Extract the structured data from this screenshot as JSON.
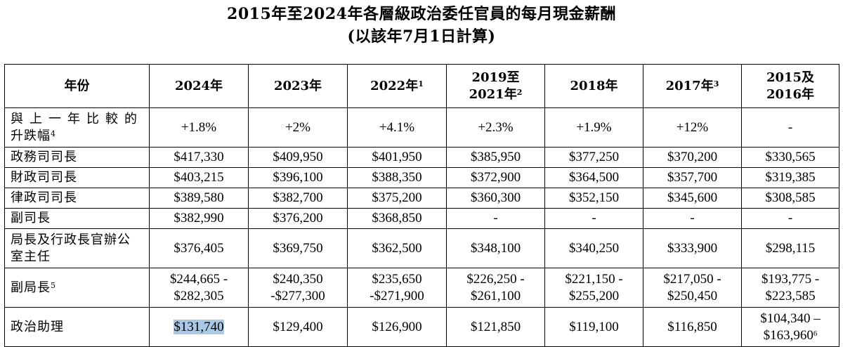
{
  "title": {
    "line1": "2015年至2024年各層級政治委任官員的每月現金薪酬",
    "line2": "(以該年7月1日計算)"
  },
  "table": {
    "header": {
      "label": "年份",
      "cols": [
        {
          "text": "2024年",
          "sup": ""
        },
        {
          "text": "2023年",
          "sup": ""
        },
        {
          "text": "2022年",
          "sup": "1"
        },
        {
          "line1": "2019至",
          "line2": "2021年",
          "sup": "2"
        },
        {
          "text": "2018年",
          "sup": ""
        },
        {
          "text": "2017年",
          "sup": "3"
        },
        {
          "line1": "2015及",
          "line2": "2016年",
          "sup": ""
        }
      ]
    },
    "change_row": {
      "label_line1": "與上一年比較的",
      "label_line2": "升跌幅",
      "label_sup": "4",
      "values": [
        "+1.8%",
        "+2%",
        "+4.1%",
        "+2.3%",
        "+1.9%",
        "+12%",
        "-"
      ]
    },
    "rows": [
      {
        "label": "政務司司長",
        "values": [
          "$417,330",
          "$409,950",
          "$401,950",
          "$385,950",
          "$377,250",
          "$370,200",
          "$330,565"
        ]
      },
      {
        "label": "財政司司長",
        "values": [
          "$403,215",
          "$396,100",
          "$388,350",
          "$372,900",
          "$364,500",
          "$357,700",
          "$319,385"
        ]
      },
      {
        "label": "律政司司長",
        "values": [
          "$389,580",
          "$382,700",
          "$375,200",
          "$360,300",
          "$352,150",
          "$345,600",
          "$308,585"
        ]
      },
      {
        "label": "副司長",
        "values": [
          "$382,990",
          "$376,200",
          "$368,850",
          "-",
          "-",
          "-",
          "-"
        ]
      }
    ],
    "director_row": {
      "label_line1": "局長及行政長官辦公",
      "label_line2": "室主任",
      "values": [
        "$376,405",
        "$369,750",
        "$362,500",
        "$348,100",
        "$340,250",
        "$333,900",
        "$298,115"
      ]
    },
    "under_row": {
      "label": "副局長",
      "label_sup": "5",
      "values": [
        {
          "l1": "$244,665 -",
          "l2": "$282,305"
        },
        {
          "l1": "$240,350",
          "l2": "-$277,300"
        },
        {
          "l1": "$235,650",
          "l2": "-$271,900"
        },
        {
          "l1": "$226,250 -",
          "l2": "$261,100"
        },
        {
          "l1": "$221,150 -",
          "l2": "$255,200"
        },
        {
          "l1": "$217,050 -",
          "l2": "$250,450"
        },
        {
          "l1": "$193,775 -",
          "l2": "$223,585"
        }
      ]
    },
    "assistant_row": {
      "label": "政治助理",
      "values": [
        "$131,740",
        "$129,400",
        "$126,900",
        "$121,850",
        "$119,100",
        "$116,850"
      ],
      "last_l1": "$104,340 –",
      "last_l2": "$163,960",
      "last_sup": "6"
    }
  }
}
